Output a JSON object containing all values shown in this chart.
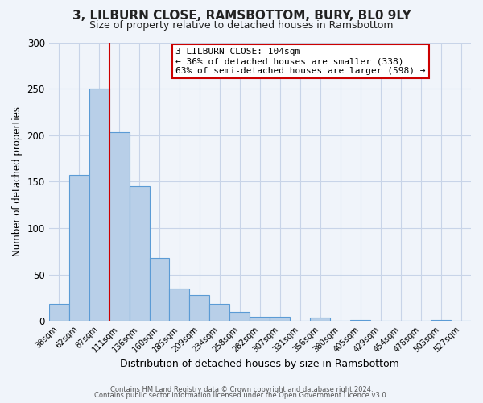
{
  "title": "3, LILBURN CLOSE, RAMSBOTTOM, BURY, BL0 9LY",
  "subtitle": "Size of property relative to detached houses in Ramsbottom",
  "xlabel": "Distribution of detached houses by size in Ramsbottom",
  "ylabel": "Number of detached properties",
  "bar_labels": [
    "38sqm",
    "62sqm",
    "87sqm",
    "111sqm",
    "136sqm",
    "160sqm",
    "185sqm",
    "209sqm",
    "234sqm",
    "258sqm",
    "282sqm",
    "307sqm",
    "331sqm",
    "356sqm",
    "380sqm",
    "405sqm",
    "429sqm",
    "454sqm",
    "478sqm",
    "503sqm",
    "527sqm"
  ],
  "bar_values": [
    19,
    157,
    250,
    203,
    145,
    68,
    35,
    28,
    19,
    10,
    5,
    5,
    0,
    4,
    0,
    1,
    0,
    0,
    0,
    1,
    0
  ],
  "bar_color": "#b8cfe8",
  "bar_edgecolor": "#5b9bd5",
  "vline_x_idx": 2.5,
  "vline_color": "#cc0000",
  "annotation_title": "3 LILBURN CLOSE: 104sqm",
  "annotation_line1": "← 36% of detached houses are smaller (338)",
  "annotation_line2": "63% of semi-detached houses are larger (598) →",
  "annotation_box_edgecolor": "#cc0000",
  "ylim": [
    0,
    300
  ],
  "yticks": [
    0,
    50,
    100,
    150,
    200,
    250,
    300
  ],
  "footer1": "Contains HM Land Registry data © Crown copyright and database right 2024.",
  "footer2": "Contains public sector information licensed under the Open Government Licence v3.0.",
  "bg_color": "#f0f4fa",
  "plot_bg_color": "#f0f4fa",
  "grid_color": "#c8d4e8"
}
